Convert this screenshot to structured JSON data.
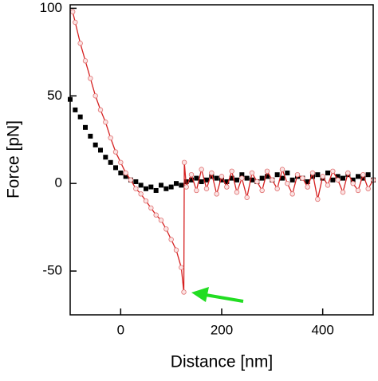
{
  "chart_data": {
    "type": "scatter",
    "xlabel": "Distance [nm]",
    "ylabel": "Force [pN]",
    "xlim": [
      -100,
      500
    ],
    "xticks": [
      0,
      200,
      400
    ],
    "ylim": [
      -75,
      102
    ],
    "yticks": [
      -50,
      0,
      50,
      100
    ],
    "series": [
      {
        "color": "#000000",
        "marker": "square",
        "lines": false,
        "x": [
          -100,
          -90,
          -80,
          -70,
          -60,
          -50,
          -40,
          -30,
          -20,
          -10,
          0,
          10,
          20,
          30,
          40,
          50,
          60,
          70,
          80,
          90,
          100,
          110,
          120,
          130,
          140,
          150,
          160,
          170,
          180,
          190,
          200,
          210,
          220,
          230,
          240,
          250,
          260,
          270,
          280,
          290,
          300,
          310,
          320,
          330,
          340,
          350,
          360,
          370,
          380,
          390,
          400,
          410,
          420,
          430,
          440,
          450,
          460,
          470,
          480,
          490,
          500
        ],
        "values": [
          48,
          42,
          38,
          32,
          27,
          22,
          19,
          15,
          12,
          9,
          6,
          4,
          2,
          1,
          -1,
          -3,
          -2,
          -4,
          -1,
          -3,
          -2,
          0,
          -1,
          1,
          2,
          3,
          1,
          2,
          4,
          3,
          2,
          1,
          3,
          2,
          5,
          3,
          2,
          1,
          3,
          4,
          2,
          5,
          3,
          6,
          2,
          4,
          3,
          1,
          4,
          5,
          3,
          6,
          2,
          4,
          3,
          5,
          2,
          4,
          3,
          5,
          2
        ]
      },
      {
        "color": "#d62020",
        "marker": "circle",
        "lines": true,
        "x": [
          -95,
          -90,
          -80,
          -70,
          -60,
          -50,
          -40,
          -30,
          -20,
          -10,
          0,
          10,
          20,
          30,
          40,
          50,
          60,
          70,
          80,
          90,
          100,
          110,
          120,
          125,
          126,
          130,
          140,
          150,
          160,
          170,
          180,
          190,
          200,
          210,
          220,
          230,
          240,
          250,
          260,
          270,
          280,
          290,
          300,
          310,
          320,
          330,
          340,
          350,
          360,
          370,
          380,
          390,
          400,
          410,
          420,
          430,
          440,
          450,
          460,
          470,
          480,
          490,
          500
        ],
        "values": [
          98,
          92,
          80,
          70,
          60,
          50,
          42,
          35,
          26,
          18,
          12,
          6,
          2,
          -3,
          -6,
          -10,
          -14,
          -18,
          -21,
          -26,
          -32,
          -38,
          -48,
          -62,
          12,
          -2,
          5,
          -4,
          8,
          -3,
          6,
          -6,
          4,
          -2,
          7,
          -5,
          3,
          -8,
          6,
          1,
          -4,
          7,
          2,
          -3,
          8,
          0,
          -6,
          5,
          3,
          -2,
          6,
          -9,
          4,
          -1,
          7,
          2,
          -5,
          6,
          0,
          -4,
          5,
          -3,
          2
        ]
      }
    ]
  }
}
